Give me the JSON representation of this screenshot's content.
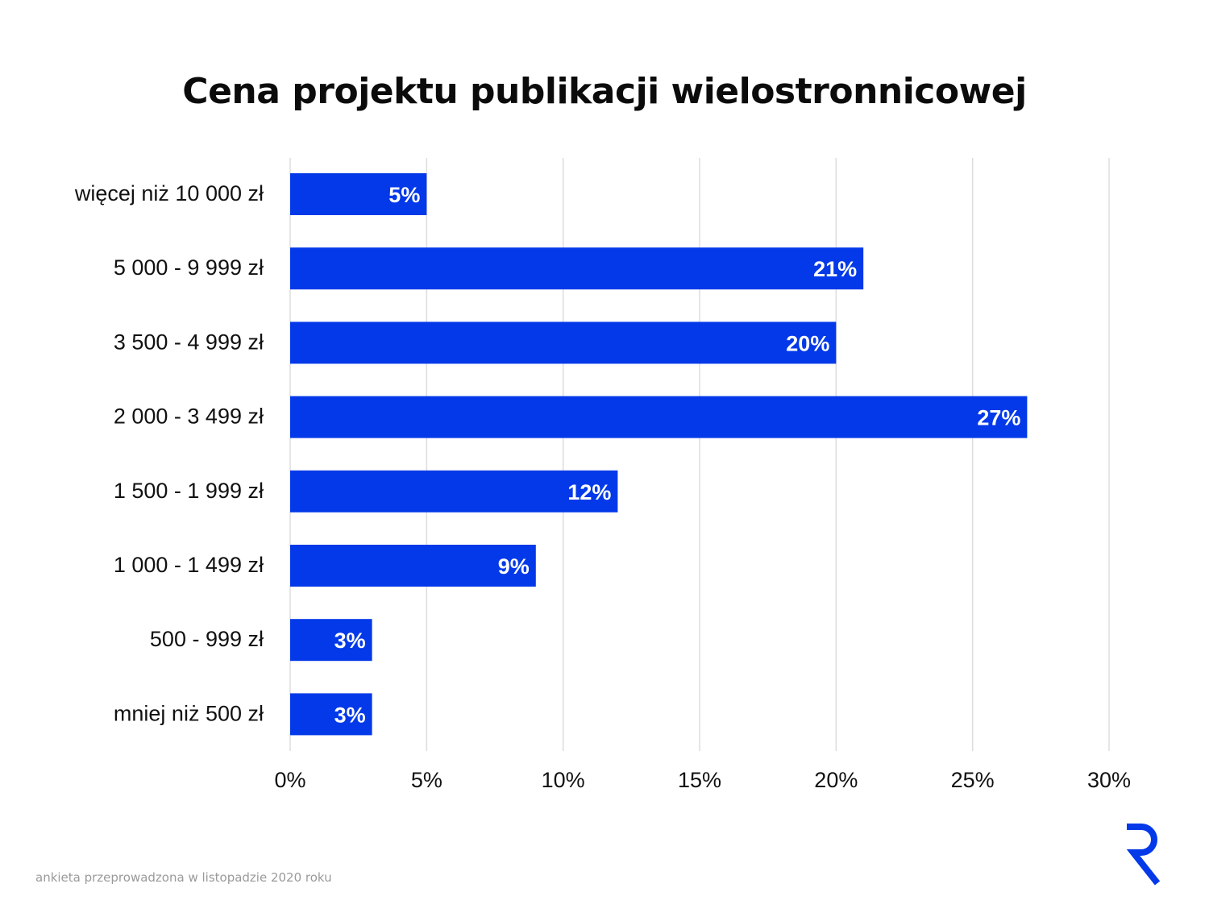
{
  "chart_data": {
    "type": "bar",
    "orientation": "horizontal",
    "title": "Cena projektu publikacji wielostronnicowej",
    "categories": [
      "więcej niż 10 000 zł",
      "5 000 - 9 999 zł",
      "3 500 - 4 999 zł",
      "2 000 - 3 499 zł",
      "1 500 - 1 999 zł",
      "1 000 - 1 499 zł",
      "500 - 999 zł",
      "mniej niż 500 zł"
    ],
    "values": [
      5,
      21,
      20,
      27,
      12,
      9,
      3,
      3
    ],
    "value_labels": [
      "5%",
      "21%",
      "20%",
      "27%",
      "12%",
      "9%",
      "3%",
      "3%"
    ],
    "xlim": [
      0,
      30
    ],
    "xticks": [
      0,
      5,
      10,
      15,
      20,
      25,
      30
    ],
    "xtick_labels": [
      "0%",
      "5%",
      "10%",
      "15%",
      "20%",
      "25%",
      "30%"
    ],
    "xlabel": "",
    "ylabel": "",
    "grid": "vertical",
    "bar_color": "#0339E8",
    "grid_color": "#DDDDDD"
  },
  "footnote": "ankieta przeprowadzona w listopadzie 2020 roku",
  "logo": {
    "icon": "r-logo-icon",
    "color": "#0339E8"
  }
}
